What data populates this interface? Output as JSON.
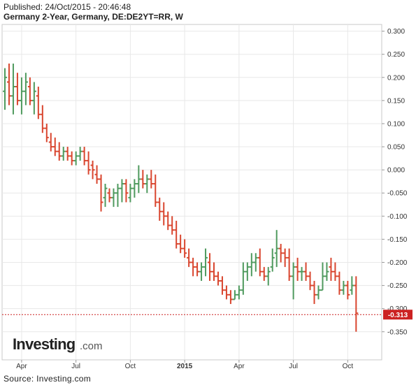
{
  "header": {
    "published": "Published: 24/Oct/2015 - 20:46:48",
    "title": "Germany 2-Year, Germany, DE:DE2YT=RR, W"
  },
  "logo": {
    "name": "Investing",
    "suffix": ".com"
  },
  "source": "Source: Investing.com",
  "colors": {
    "up": "#4f9a5e",
    "down": "#d9462f",
    "current": "#cc2222",
    "grid": "#e8e8e8"
  },
  "chart_data": {
    "type": "ohlc",
    "title": "Germany 2-Year, Germany, DE:DE2YT=RR, W",
    "xlabel": "",
    "ylabel": "",
    "ylim": [
      -0.37,
      0.31
    ],
    "y_ticks": [
      "0.300",
      "0.250",
      "0.200",
      "0.150",
      "0.100",
      "0.050",
      "0.000",
      "-0.050",
      "-0.100",
      "-0.150",
      "-0.200",
      "-0.250",
      "-0.300",
      "-0.350"
    ],
    "y_tick_values": [
      0.3,
      0.25,
      0.2,
      0.15,
      0.1,
      0.05,
      0.0,
      -0.05,
      -0.1,
      -0.15,
      -0.2,
      -0.25,
      -0.3,
      -0.35
    ],
    "x_labels": [
      "Apr",
      "Jul",
      "Oct",
      "2015",
      "Apr",
      "Jul",
      "Oct"
    ],
    "x_label_weeks": [
      4,
      17,
      30,
      43,
      56,
      69,
      82
    ],
    "current_value": "-0.313",
    "current_numeric": -0.313,
    "bars": [
      [
        0.17,
        0.22,
        0.13,
        0.2
      ],
      [
        0.19,
        0.23,
        0.14,
        0.16
      ],
      [
        0.16,
        0.23,
        0.12,
        0.18
      ],
      [
        0.18,
        0.21,
        0.14,
        0.15
      ],
      [
        0.15,
        0.2,
        0.12,
        0.17
      ],
      [
        0.17,
        0.21,
        0.14,
        0.19
      ],
      [
        0.18,
        0.2,
        0.14,
        0.15
      ],
      [
        0.15,
        0.19,
        0.12,
        0.17
      ],
      [
        0.16,
        0.18,
        0.11,
        0.12
      ],
      [
        0.12,
        0.14,
        0.08,
        0.09
      ],
      [
        0.09,
        0.1,
        0.06,
        0.07
      ],
      [
        0.06,
        0.08,
        0.04,
        0.05
      ],
      [
        0.05,
        0.07,
        0.03,
        0.04
      ],
      [
        0.04,
        0.06,
        0.02,
        0.03
      ],
      [
        0.03,
        0.05,
        0.02,
        0.04
      ],
      [
        0.04,
        0.05,
        0.02,
        0.03
      ],
      [
        0.03,
        0.04,
        0.01,
        0.02
      ],
      [
        0.02,
        0.04,
        0.01,
        0.03
      ],
      [
        0.03,
        0.05,
        0.02,
        0.04
      ],
      [
        0.04,
        0.05,
        0.01,
        0.02
      ],
      [
        0.02,
        0.04,
        -0.01,
        0.0
      ],
      [
        0.01,
        0.02,
        -0.02,
        0.0
      ],
      [
        -0.01,
        0.01,
        -0.03,
        -0.02
      ],
      [
        -0.02,
        -0.01,
        -0.09,
        -0.07
      ],
      [
        -0.06,
        -0.03,
        -0.08,
        -0.04
      ],
      [
        -0.05,
        -0.04,
        -0.07,
        -0.06
      ],
      [
        -0.06,
        -0.04,
        -0.08,
        -0.05
      ],
      [
        -0.05,
        -0.03,
        -0.08,
        -0.04
      ],
      [
        -0.04,
        -0.02,
        -0.07,
        -0.03
      ],
      [
        -0.03,
        -0.02,
        -0.07,
        -0.05
      ],
      [
        -0.06,
        -0.03,
        -0.07,
        -0.04
      ],
      [
        -0.04,
        -0.02,
        -0.06,
        -0.03
      ],
      [
        -0.03,
        0.01,
        -0.05,
        -0.02
      ],
      [
        -0.02,
        0.0,
        -0.04,
        -0.03
      ],
      [
        -0.03,
        -0.01,
        -0.05,
        -0.02
      ],
      [
        -0.02,
        0.0,
        -0.04,
        -0.03
      ],
      [
        -0.03,
        -0.01,
        -0.08,
        -0.07
      ],
      [
        -0.07,
        -0.06,
        -0.11,
        -0.09
      ],
      [
        -0.09,
        -0.07,
        -0.12,
        -0.1
      ],
      [
        -0.1,
        -0.09,
        -0.13,
        -0.12
      ],
      [
        -0.12,
        -0.1,
        -0.14,
        -0.13
      ],
      [
        -0.13,
        -0.11,
        -0.17,
        -0.16
      ],
      [
        -0.16,
        -0.14,
        -0.18,
        -0.17
      ],
      [
        -0.17,
        -0.15,
        -0.19,
        -0.18
      ],
      [
        -0.19,
        -0.17,
        -0.21,
        -0.2
      ],
      [
        -0.2,
        -0.19,
        -0.23,
        -0.21
      ],
      [
        -0.21,
        -0.2,
        -0.23,
        -0.22
      ],
      [
        -0.22,
        -0.2,
        -0.24,
        -0.21
      ],
      [
        -0.21,
        -0.17,
        -0.23,
        -0.19
      ],
      [
        -0.2,
        -0.18,
        -0.24,
        -0.22
      ],
      [
        -0.22,
        -0.2,
        -0.24,
        -0.23
      ],
      [
        -0.23,
        -0.22,
        -0.25,
        -0.24
      ],
      [
        -0.24,
        -0.23,
        -0.27,
        -0.26
      ],
      [
        -0.26,
        -0.25,
        -0.28,
        -0.27
      ],
      [
        -0.27,
        -0.26,
        -0.29,
        -0.28
      ],
      [
        -0.28,
        -0.26,
        -0.28,
        -0.27
      ],
      [
        -0.27,
        -0.25,
        -0.28,
        -0.26
      ],
      [
        -0.26,
        -0.2,
        -0.27,
        -0.22
      ],
      [
        -0.22,
        -0.2,
        -0.24,
        -0.21
      ],
      [
        -0.21,
        -0.18,
        -0.23,
        -0.2
      ],
      [
        -0.2,
        -0.18,
        -0.22,
        -0.19
      ],
      [
        -0.19,
        -0.17,
        -0.23,
        -0.22
      ],
      [
        -0.22,
        -0.21,
        -0.24,
        -0.23
      ],
      [
        -0.23,
        -0.21,
        -0.25,
        -0.22
      ],
      [
        -0.21,
        -0.17,
        -0.22,
        -0.19
      ],
      [
        -0.18,
        -0.13,
        -0.21,
        -0.17
      ],
      [
        -0.17,
        -0.16,
        -0.2,
        -0.18
      ],
      [
        -0.18,
        -0.17,
        -0.21,
        -0.19
      ],
      [
        -0.19,
        -0.17,
        -0.24,
        -0.23
      ],
      [
        -0.23,
        -0.2,
        -0.28,
        -0.21
      ],
      [
        -0.21,
        -0.19,
        -0.24,
        -0.22
      ],
      [
        -0.22,
        -0.21,
        -0.24,
        -0.22
      ],
      [
        -0.22,
        -0.2,
        -0.24,
        -0.23
      ],
      [
        -0.23,
        -0.22,
        -0.26,
        -0.25
      ],
      [
        -0.25,
        -0.24,
        -0.29,
        -0.27
      ],
      [
        -0.27,
        -0.25,
        -0.28,
        -0.26
      ],
      [
        -0.26,
        -0.2,
        -0.26,
        -0.23
      ],
      [
        -0.23,
        -0.2,
        -0.24,
        -0.22
      ],
      [
        -0.21,
        -0.19,
        -0.24,
        -0.22
      ],
      [
        -0.22,
        -0.2,
        -0.24,
        -0.23
      ],
      [
        -0.23,
        -0.22,
        -0.27,
        -0.26
      ],
      [
        -0.26,
        -0.24,
        -0.27,
        -0.25
      ],
      [
        -0.25,
        -0.24,
        -0.28,
        -0.27
      ],
      [
        -0.26,
        -0.23,
        -0.27,
        -0.25
      ],
      [
        -0.25,
        -0.23,
        -0.35,
        -0.31
      ]
    ]
  }
}
